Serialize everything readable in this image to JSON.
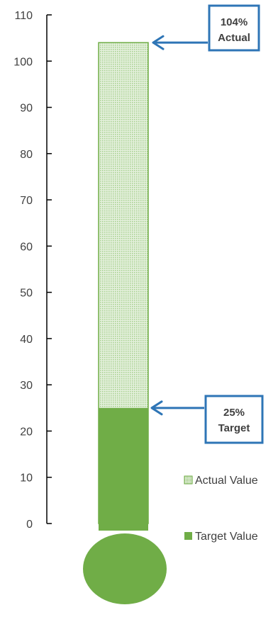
{
  "chart_data": {
    "type": "bar",
    "style": "thermometer",
    "categories": [
      ""
    ],
    "series": [
      {
        "name": "Actual Value",
        "values": [
          104
        ],
        "color": "#70ad47",
        "pattern": "dotted"
      },
      {
        "name": "Target Value",
        "values": [
          25
        ],
        "color": "#70ad47",
        "pattern": "solid"
      }
    ],
    "ylim": [
      0,
      110
    ],
    "yticks": [
      0,
      10,
      20,
      30,
      40,
      50,
      60,
      70,
      80,
      90,
      100,
      110
    ],
    "callouts": [
      {
        "series": "Actual Value",
        "line1": "104%",
        "line2": "Actual",
        "border_color": "#2e75b6"
      },
      {
        "series": "Target Value",
        "line1": "25%",
        "line2": "Target",
        "border_color": "#2e75b6"
      }
    ],
    "legend": {
      "position": "right",
      "entries": [
        "Actual Value",
        "Target Value"
      ]
    },
    "grid": false,
    "colors": {
      "axis": "#000000",
      "text": "#404040",
      "arrow": "#2e75b6"
    }
  }
}
